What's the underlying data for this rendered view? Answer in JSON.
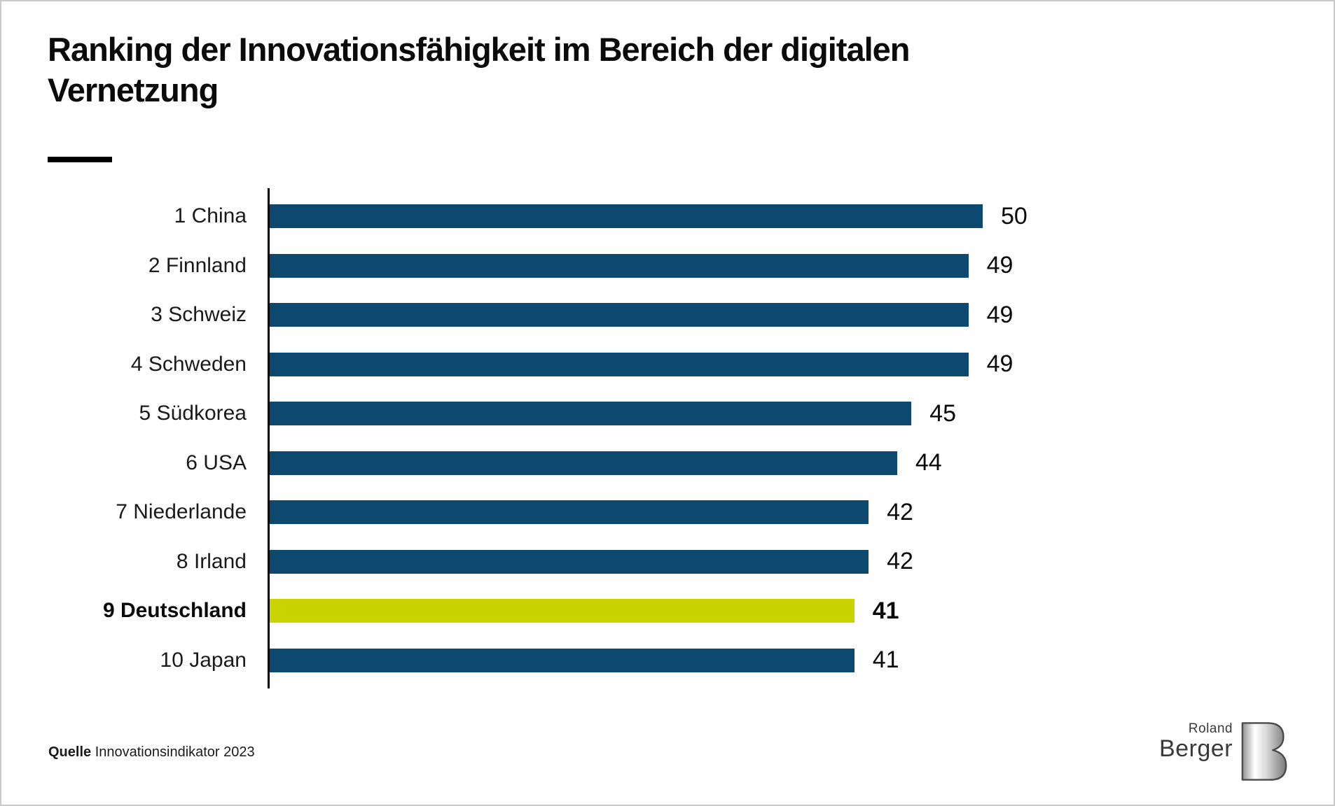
{
  "title": {
    "line1": "Ranking der Innovationsfähigkeit im Bereich der digitalen",
    "line2": "Vernetzung"
  },
  "chart_data": {
    "type": "bar",
    "orientation": "horizontal",
    "title": "Ranking der Innovationsfähigkeit im Bereich der digitalen Vernetzung",
    "categories": [
      "1 China",
      "2 Finnland",
      "3 Schweiz",
      "4 Schweden",
      "5 Südkorea",
      "6 USA",
      "7 Niederlande",
      "8 Irland",
      "9 Deutschland",
      "10 Japan"
    ],
    "values": [
      50,
      49,
      49,
      49,
      45,
      44,
      42,
      42,
      41,
      41
    ],
    "highlight_index": 8,
    "highlighted_category": "9 Deutschland",
    "xlim": [
      0,
      50
    ],
    "grid": false,
    "legend": false,
    "value_labels_shown": true
  },
  "source": {
    "label": "Quelle",
    "text": "Innovationsindikator 2023"
  },
  "logo": {
    "top": "Roland",
    "bottom": "Berger"
  },
  "colors": {
    "bar": "#0d486e",
    "highlight": "#c8d300",
    "text": "#0a0a0a",
    "border": "#c9c9c9",
    "logo_text": "#3a3a3c"
  }
}
